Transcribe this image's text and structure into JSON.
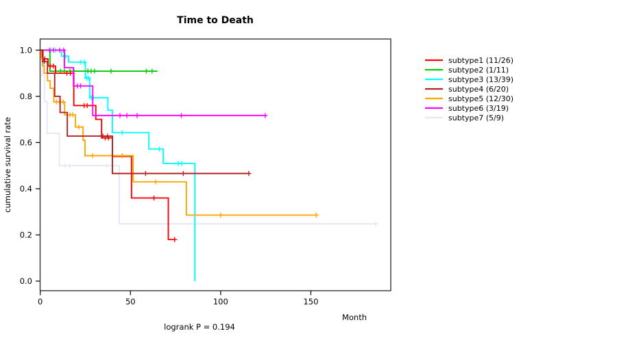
{
  "title": "Time to Death",
  "footnote": "logrank P = 0.194",
  "axes": {
    "x": {
      "label": "Month",
      "ticks": [
        0,
        50,
        100,
        150
      ],
      "tick_labels": [
        "0",
        "50",
        "100",
        "150"
      ],
      "range": [
        0,
        194
      ]
    },
    "y": {
      "label": "cumulative survival rate",
      "ticks": [
        0.0,
        0.2,
        0.4,
        0.6,
        0.8,
        1.0
      ],
      "tick_labels": [
        "0.0",
        "0.2",
        "0.4",
        "0.6",
        "0.8",
        "1.0"
      ],
      "range": [
        0.0,
        1.0
      ]
    }
  },
  "legend": {
    "position": "right",
    "items": [
      {
        "label": "subtype1 (11/26)",
        "color": "#FF0000"
      },
      {
        "label": "subtype2 (1/11)",
        "color": "#00CD00"
      },
      {
        "label": "subtype3 (13/39)",
        "color": "#00FFFF"
      },
      {
        "label": "subtype4 (6/20)",
        "color": "#B22222"
      },
      {
        "label": "subtype5 (12/30)",
        "color": "#FFA500"
      },
      {
        "label": "subtype6 (3/19)",
        "color": "#FF00FF"
      },
      {
        "label": "subtype7 (5/9)",
        "color": "#E6E6FA"
      }
    ]
  },
  "chart_data": {
    "type": "line",
    "chart_kind": "kaplan-meier-step",
    "title": "Time to Death",
    "xlabel": "Month",
    "ylabel": "cumulative survival rate",
    "xlim": [
      0,
      194
    ],
    "ylim": [
      0.0,
      1.0
    ],
    "grid": false,
    "legend_position": "right-outside",
    "annotation": "logrank P = 0.194",
    "draw_order": [
      "subtype7",
      "subtype3",
      "subtype2",
      "subtype1",
      "subtype5",
      "subtype6",
      "subtype4"
    ],
    "series": [
      {
        "name": "subtype1",
        "label": "subtype1 (11/26)",
        "events": 11,
        "n": 26,
        "color": "#FF0000",
        "final_level": 0.18,
        "end_time": 74.5,
        "steps": [
          [
            1,
            0.962
          ],
          [
            4.3,
            0.931
          ],
          [
            8.5,
            0.9
          ],
          [
            18.6,
            0.76
          ],
          [
            30.8,
            0.7
          ],
          [
            34,
            0.62
          ],
          [
            40,
            0.54
          ],
          [
            50.6,
            0.36
          ],
          [
            71,
            0.18
          ]
        ],
        "censors": [
          [
            2.5,
            0.962
          ],
          [
            5.6,
            0.931
          ],
          [
            7.2,
            0.931
          ],
          [
            14.8,
            0.9
          ],
          [
            16.7,
            0.9
          ],
          [
            24.3,
            0.76
          ],
          [
            26,
            0.76
          ],
          [
            36,
            0.62
          ],
          [
            37.8,
            0.62
          ],
          [
            63,
            0.36
          ],
          [
            74.5,
            0.18
          ]
        ]
      },
      {
        "name": "subtype2",
        "label": "subtype2 (1/11)",
        "events": 1,
        "n": 11,
        "color": "#00CD00",
        "final_level": 0.909,
        "end_time": 65,
        "steps": [
          [
            5.4,
            0.909
          ]
        ],
        "censors": [
          [
            11.2,
            0.909
          ],
          [
            13.4,
            0.909
          ],
          [
            16.5,
            0.909
          ],
          [
            18.7,
            0.909
          ],
          [
            26.4,
            0.909
          ],
          [
            28.2,
            0.909
          ],
          [
            30.1,
            0.909
          ],
          [
            39.2,
            0.909
          ],
          [
            58.8,
            0.909
          ],
          [
            62,
            0.909
          ]
        ]
      },
      {
        "name": "subtype3",
        "label": "subtype3 (13/39)",
        "events": 13,
        "n": 39,
        "color": "#00FFFF",
        "final_level": 0.0,
        "end_time": 85.7,
        "steps": [
          [
            11.8,
            0.974
          ],
          [
            15.7,
            0.948
          ],
          [
            25,
            0.879
          ],
          [
            27.4,
            0.794
          ],
          [
            37.5,
            0.74
          ],
          [
            40,
            0.643
          ],
          [
            60.2,
            0.572
          ],
          [
            68.2,
            0.509
          ],
          [
            85.7,
            0.0
          ]
        ],
        "censors": [
          [
            5.8,
            1
          ],
          [
            8.5,
            1
          ],
          [
            14,
            0.974
          ],
          [
            22.5,
            0.948
          ],
          [
            24.4,
            0.948
          ],
          [
            25.8,
            0.879
          ],
          [
            26.8,
            0.879
          ],
          [
            28.3,
            0.794
          ],
          [
            29.4,
            0.794
          ],
          [
            45.4,
            0.643
          ],
          [
            66,
            0.572
          ],
          [
            76.5,
            0.509
          ],
          [
            78.4,
            0.509
          ]
        ]
      },
      {
        "name": "subtype4",
        "label": "subtype4 (6/20)",
        "events": 6,
        "n": 20,
        "color": "#B22222",
        "final_level": 0.466,
        "end_time": 115.6,
        "steps": [
          [
            1.5,
            0.95
          ],
          [
            4,
            0.9
          ],
          [
            8,
            0.8
          ],
          [
            11,
            0.73
          ],
          [
            15,
            0.628
          ],
          [
            40,
            0.466
          ]
        ],
        "censors": [
          [
            2.2,
            0.95
          ],
          [
            34.7,
            0.628
          ],
          [
            37.3,
            0.628
          ],
          [
            58.4,
            0.466
          ],
          [
            79.3,
            0.466
          ],
          [
            115.6,
            0.466
          ]
        ]
      },
      {
        "name": "subtype5",
        "label": "subtype5 (12/30)",
        "events": 12,
        "n": 30,
        "color": "#FFA500",
        "final_level": 0.286,
        "end_time": 153.2,
        "steps": [
          [
            0.5,
            0.967
          ],
          [
            1.3,
            0.933
          ],
          [
            2.2,
            0.9
          ],
          [
            4,
            0.867
          ],
          [
            5.5,
            0.835
          ],
          [
            7.5,
            0.776
          ],
          [
            13.5,
            0.72
          ],
          [
            19.5,
            0.667
          ],
          [
            23.7,
            0.61
          ],
          [
            24.8,
            0.543
          ],
          [
            51.5,
            0.43
          ],
          [
            81,
            0.286
          ]
        ],
        "censors": [
          [
            9,
            0.776
          ],
          [
            10.7,
            0.776
          ],
          [
            12.7,
            0.776
          ],
          [
            16.5,
            0.72
          ],
          [
            18,
            0.72
          ],
          [
            21.4,
            0.667
          ],
          [
            29,
            0.543
          ],
          [
            45.4,
            0.543
          ],
          [
            64,
            0.43
          ],
          [
            100,
            0.286
          ],
          [
            153,
            0.286
          ]
        ]
      },
      {
        "name": "subtype6",
        "label": "subtype6 (3/19)",
        "events": 3,
        "n": 19,
        "color": "#FF00FF",
        "final_level": 0.717,
        "end_time": 124.7,
        "steps": [
          [
            13.4,
            0.924
          ],
          [
            18.4,
            0.845
          ],
          [
            29.1,
            0.717
          ]
        ],
        "censors": [
          [
            5.1,
            1
          ],
          [
            7.3,
            1
          ],
          [
            10.8,
            1
          ],
          [
            13,
            1
          ],
          [
            20.5,
            0.845
          ],
          [
            22.4,
            0.845
          ],
          [
            44.2,
            0.717
          ],
          [
            48,
            0.717
          ],
          [
            53.7,
            0.717
          ],
          [
            78.2,
            0.717
          ],
          [
            124.7,
            0.717
          ]
        ]
      },
      {
        "name": "subtype7",
        "label": "subtype7 (5/9)",
        "events": 5,
        "n": 9,
        "color": "#E6E6FA",
        "final_level": 0.248,
        "end_time": 186,
        "steps": [
          [
            1.2,
            0.889
          ],
          [
            2.3,
            0.778
          ],
          [
            3.8,
            0.64
          ],
          [
            10.6,
            0.5
          ],
          [
            43.8,
            0.248
          ]
        ],
        "censors": [
          [
            13.8,
            0.5
          ],
          [
            16.3,
            0.5
          ],
          [
            37,
            0.5
          ],
          [
            186,
            0.248
          ]
        ]
      }
    ]
  },
  "layout_note": "step survival curves with + censor ticks; plot box with outward axis ticks"
}
